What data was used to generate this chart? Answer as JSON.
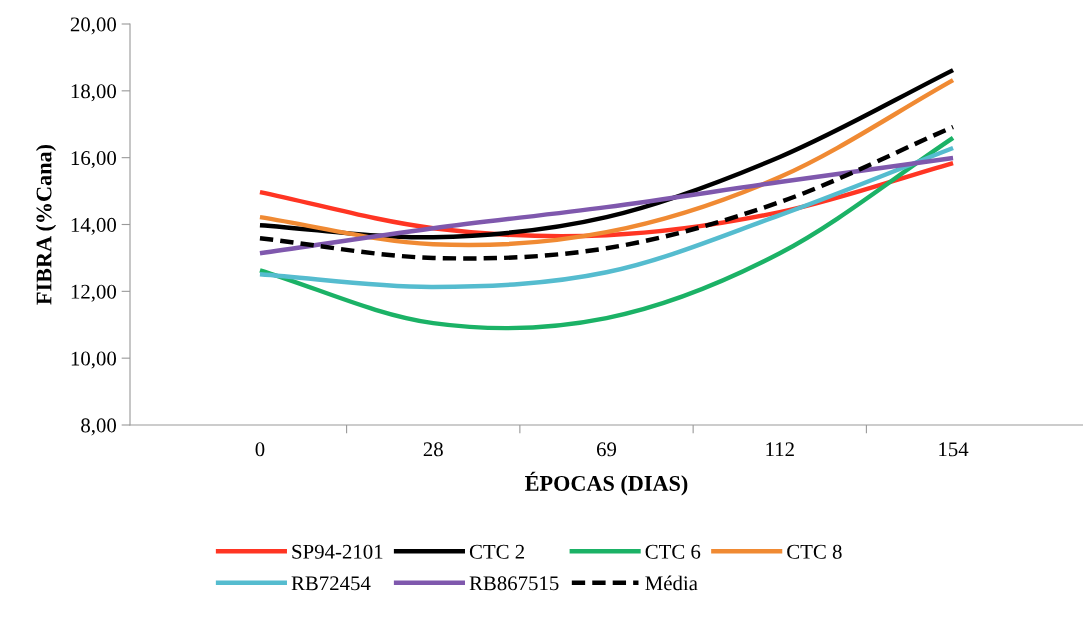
{
  "chart_data": {
    "type": "line",
    "xlabel": "ÉPOCAS (DIAS)",
    "ylabel": "FIBRA (%Cana)",
    "categories": [
      "0",
      "28",
      "69",
      "112",
      "154"
    ],
    "ylim": [
      8,
      20
    ],
    "yticks": [
      {
        "value": 8,
        "label": "8,00"
      },
      {
        "value": 10,
        "label": "10,00"
      },
      {
        "value": 12,
        "label": "12,00"
      },
      {
        "value": 14,
        "label": "14,00"
      },
      {
        "value": 16,
        "label": "16,00"
      },
      {
        "value": 18,
        "label": "18,00"
      },
      {
        "value": 20,
        "label": "20,00"
      }
    ],
    "grid": false,
    "legend": "bottom",
    "marker": "none",
    "series": [
      {
        "name": "SP94-2101",
        "color": "#ff3523",
        "values": [
          14.97,
          13.89,
          13.68,
          14.37,
          15.84
        ]
      },
      {
        "name": "CTC 2",
        "color": "#000000",
        "values": [
          13.98,
          13.62,
          14.22,
          16.02,
          18.62
        ]
      },
      {
        "name": "CTC 6",
        "color": "#1bb266",
        "values": [
          12.63,
          11.05,
          11.2,
          13.14,
          16.59
        ]
      },
      {
        "name": "CTC 8",
        "color": "#f08a33",
        "values": [
          14.22,
          13.41,
          13.77,
          15.42,
          18.32
        ]
      },
      {
        "name": "RB72454",
        "color": "#55bccf",
        "values": [
          12.51,
          12.13,
          12.57,
          14.28,
          16.29
        ]
      },
      {
        "name": "RB867515",
        "color": "#7f58ad",
        "values": [
          13.14,
          13.89,
          14.52,
          15.27,
          15.99
        ]
      },
      {
        "name": "Média",
        "color": "#000000",
        "line_style": "dashed",
        "values": [
          13.59,
          13.0,
          13.29,
          14.67,
          16.92
        ]
      }
    ]
  }
}
